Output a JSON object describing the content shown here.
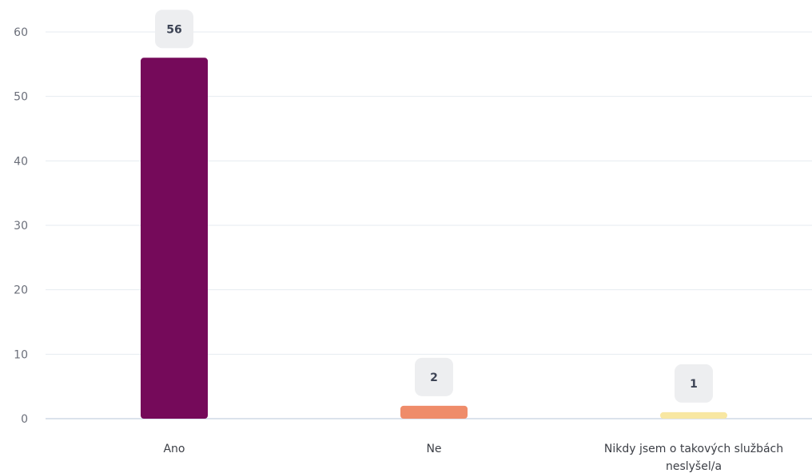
{
  "chart_data": {
    "type": "bar",
    "categories": [
      "Ano",
      "Ne",
      "Nikdy jsem o takových službách neslyšel/a"
    ],
    "category_label_lines": [
      [
        "Ano"
      ],
      [
        "Ne"
      ],
      [
        "Nikdy jsem o takových službách",
        "neslyšel/a"
      ]
    ],
    "values": [
      56,
      2,
      1
    ],
    "data_labels": [
      "56",
      "2",
      "1"
    ],
    "colors": [
      "#750a5a",
      "#ef8c6a",
      "#f8e7a2"
    ],
    "ylim": [
      0,
      60
    ],
    "yticks": [
      0,
      10,
      20,
      30,
      40,
      50,
      60
    ],
    "ytick_labels": [
      "0",
      "10",
      "20",
      "30",
      "40",
      "50",
      "60"
    ],
    "grid": true,
    "title": "",
    "xlabel": "",
    "ylabel": ""
  },
  "style": {
    "grid_color": "#e6ebf1",
    "axis_color": "#cfd8e6",
    "badge_color": "#edeef0"
  }
}
